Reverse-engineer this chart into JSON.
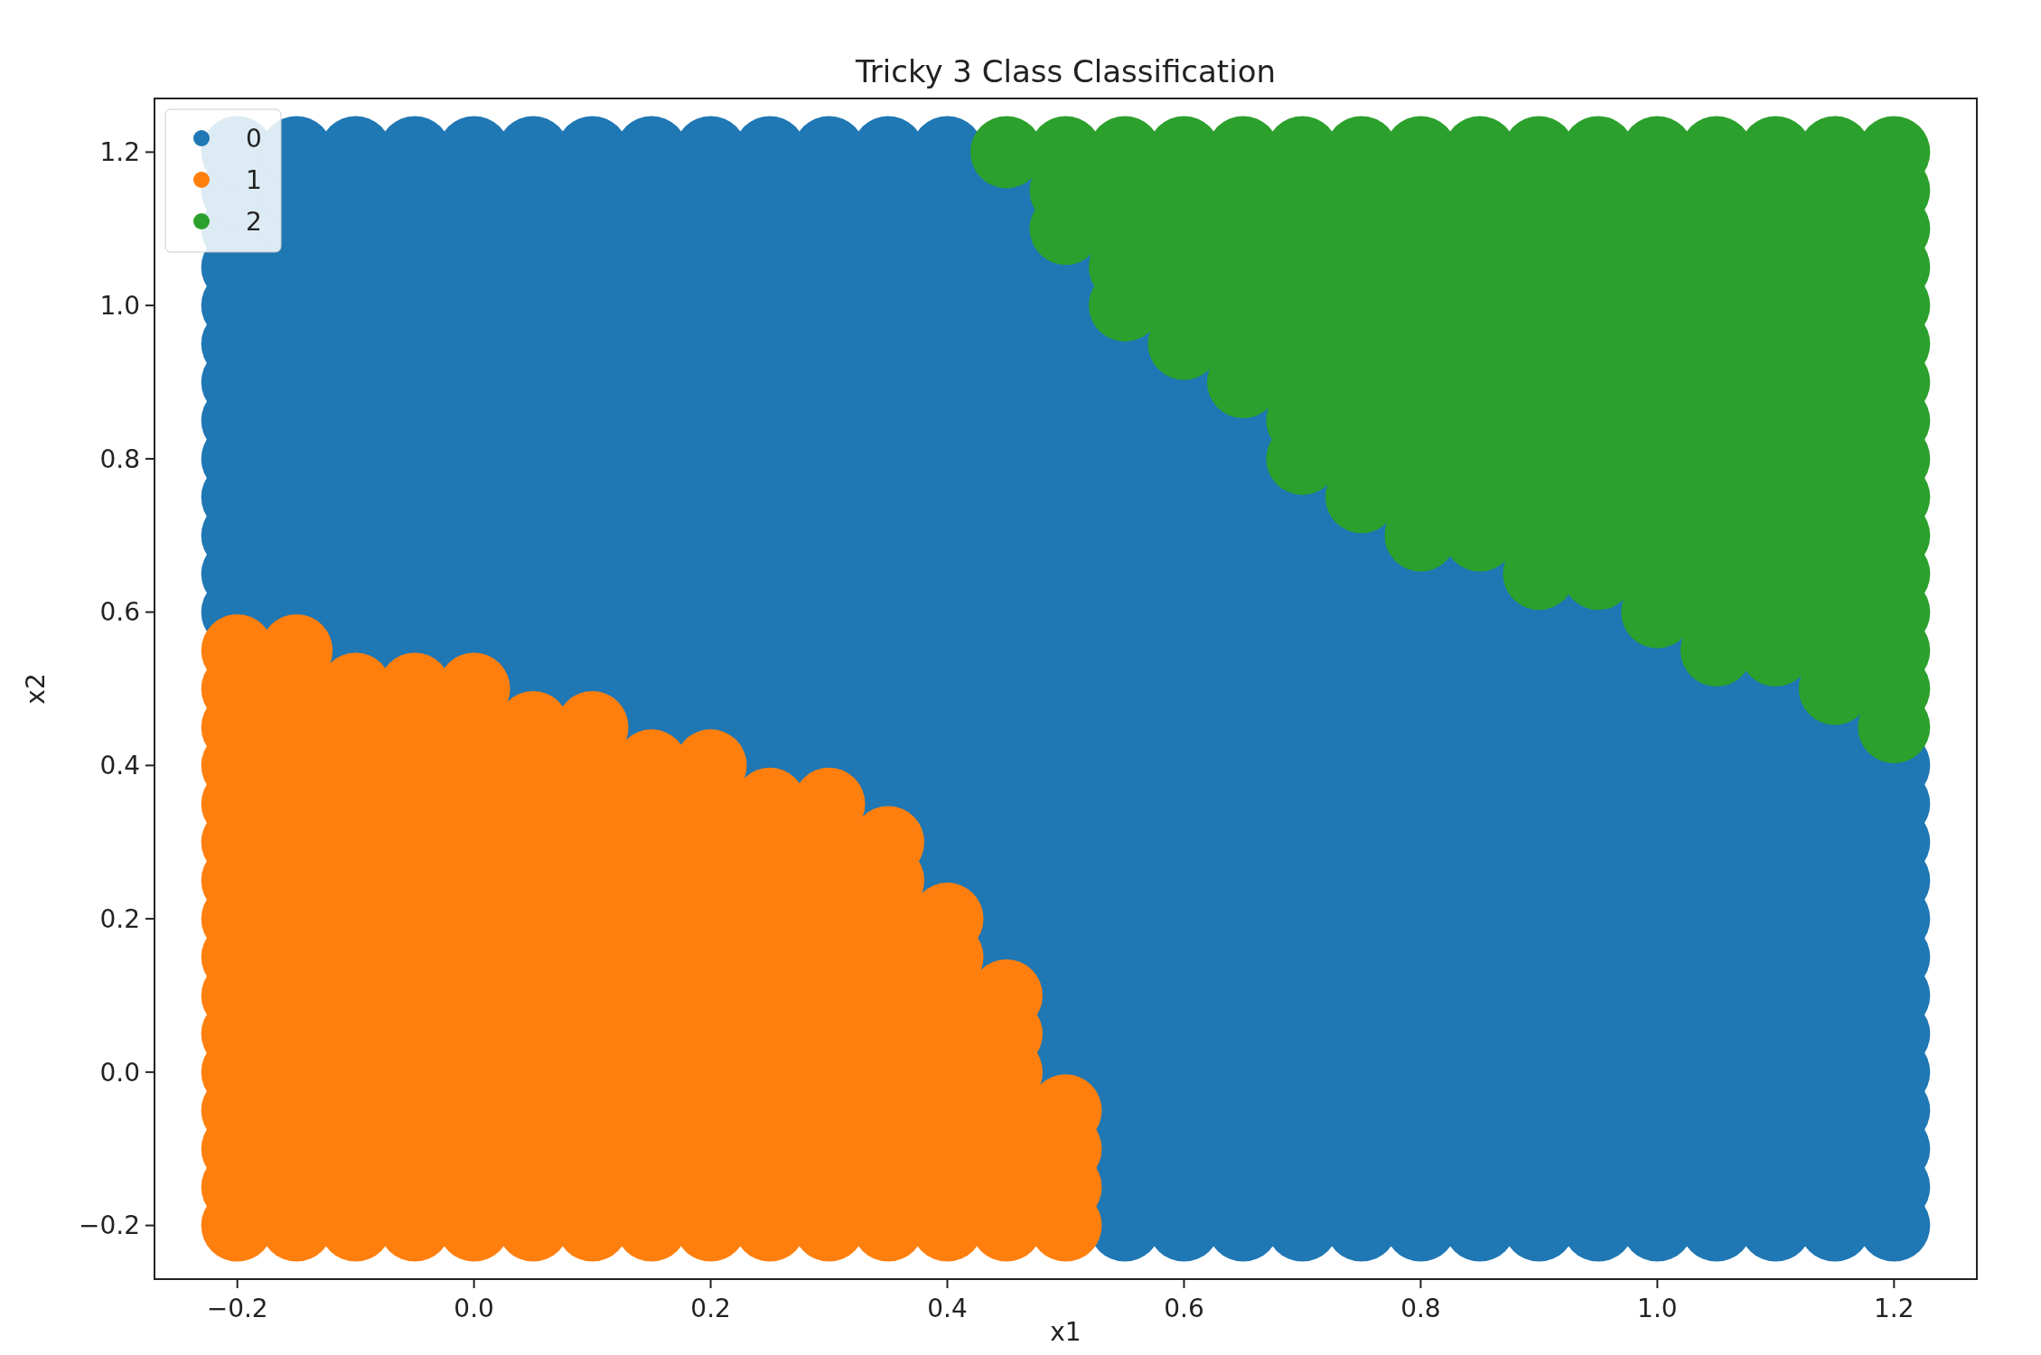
{
  "chart_data": {
    "type": "scatter",
    "title": "Tricky 3 Class Classification",
    "xlabel": "x1",
    "ylabel": "x2",
    "xlim": [
      -0.27,
      1.27
    ],
    "ylim": [
      -0.27,
      1.27
    ],
    "xticks": [
      {
        "value": -0.2,
        "label": "−0.2"
      },
      {
        "value": 0,
        "label": "0.0"
      },
      0.2,
      0.4,
      0.6,
      0.8,
      {
        "value": 1,
        "label": "1.0"
      },
      1.2
    ],
    "yticks": [
      {
        "value": -0.2,
        "label": "−0.2"
      },
      {
        "value": 0,
        "label": "0.0"
      },
      0.2,
      0.4,
      0.6,
      0.8,
      {
        "value": 1,
        "label": "1.0"
      },
      1.2
    ],
    "grid": false,
    "legend": "top left",
    "marker": "circle",
    "series": [
      {
        "name": "0",
        "color": "#1f77b4",
        "x": [
          0.55,
          0.6,
          0.65,
          0.7,
          0.75,
          0.8,
          0.85,
          0.9,
          0.95,
          1,
          1.05,
          1.1,
          1.15,
          1.2,
          0.55,
          0.6,
          0.65,
          0.7,
          0.75,
          0.8,
          0.85,
          0.9,
          0.95,
          1,
          1.05,
          1.1,
          1.15,
          1.2,
          0.55,
          0.6,
          0.65,
          0.7,
          0.75,
          0.8,
          0.85,
          0.9,
          0.95,
          1,
          1.05,
          1.1,
          1.15,
          1.2,
          0.55,
          0.6,
          0.65,
          0.7,
          0.75,
          0.8,
          0.85,
          0.9,
          0.95,
          1,
          1.05,
          1.1,
          1.15,
          1.2,
          0.5,
          0.55,
          0.6,
          0.65,
          0.7,
          0.75,
          0.8,
          0.85,
          0.9,
          0.95,
          1,
          1.05,
          1.1,
          1.15,
          1.2,
          0.5,
          0.55,
          0.6,
          0.65,
          0.7,
          0.75,
          0.8,
          0.85,
          0.9,
          0.95,
          1,
          1.05,
          1.1,
          1.15,
          1.2,
          0.5,
          0.55,
          0.6,
          0.65,
          0.7,
          0.75,
          0.8,
          0.85,
          0.9,
          0.95,
          1,
          1.05,
          1.1,
          1.15,
          1.2,
          0.45,
          0.5,
          0.55,
          0.6,
          0.65,
          0.7,
          0.75,
          0.8,
          0.85,
          0.9,
          0.95,
          1,
          1.05,
          1.1,
          1.15,
          1.2,
          0.45,
          0.5,
          0.55,
          0.6,
          0.65,
          0.7,
          0.75,
          0.8,
          0.85,
          0.9,
          0.95,
          1,
          1.05,
          1.1,
          1.15,
          1.2,
          0.4,
          0.45,
          0.5,
          0.55,
          0.6,
          0.65,
          0.7,
          0.75,
          0.8,
          0.85,
          0.9,
          0.95,
          1,
          1.05,
          1.1,
          1.15,
          1.2,
          0.4,
          0.45,
          0.5,
          0.55,
          0.6,
          0.65,
          0.7,
          0.75,
          0.8,
          0.85,
          0.9,
          0.95,
          1,
          1.05,
          1.1,
          1.15,
          1.2,
          0.35,
          0.4,
          0.45,
          0.5,
          0.55,
          0.6,
          0.65,
          0.7,
          0.75,
          0.8,
          0.85,
          0.9,
          0.95,
          1,
          1.05,
          1.1,
          1.15,
          1.2,
          0.25,
          0.3,
          0.35,
          0.4,
          0.45,
          0.5,
          0.55,
          0.6,
          0.65,
          0.7,
          0.75,
          0.8,
          0.85,
          0.9,
          0.95,
          1,
          1.05,
          1.1,
          1.15,
          1.2,
          0.15,
          0.2,
          0.25,
          0.3,
          0.35,
          0.4,
          0.45,
          0.5,
          0.55,
          0.6,
          0.65,
          0.7,
          0.75,
          0.8,
          0.85,
          0.9,
          0.95,
          1,
          1.05,
          1.1,
          1.15,
          0.05,
          0.1,
          0.15,
          0.2,
          0.25,
          0.3,
          0.35,
          0.4,
          0.45,
          0.5,
          0.55,
          0.6,
          0.65,
          0.7,
          0.75,
          0.8,
          0.85,
          0.9,
          0.95,
          1,
          1.05,
          1.1,
          -0.1,
          -0.05,
          0,
          0.05,
          0.1,
          0.15,
          0.2,
          0.25,
          0.3,
          0.35,
          0.4,
          0.45,
          0.5,
          0.55,
          0.6,
          0.65,
          0.7,
          0.75,
          0.8,
          0.85,
          0.9,
          0.95,
          1,
          -0.2,
          -0.15,
          -0.1,
          -0.05,
          0,
          0.05,
          0.1,
          0.15,
          0.2,
          0.25,
          0.3,
          0.35,
          0.4,
          0.45,
          0.5,
          0.55,
          0.6,
          0.65,
          0.7,
          0.75,
          0.8,
          0.85,
          0.9,
          0.95,
          -0.2,
          -0.15,
          -0.1,
          -0.05,
          0,
          0.05,
          0.1,
          0.15,
          0.2,
          0.25,
          0.3,
          0.35,
          0.4,
          0.45,
          0.5,
          0.55,
          0.6,
          0.65,
          0.7,
          0.75,
          0.8,
          0.85,
          -0.2,
          -0.15,
          -0.1,
          -0.05,
          0,
          0.05,
          0.1,
          0.15,
          0.2,
          0.25,
          0.3,
          0.35,
          0.4,
          0.45,
          0.5,
          0.55,
          0.6,
          0.65,
          0.7,
          0.75,
          -0.2,
          -0.15,
          -0.1,
          -0.05,
          0,
          0.05,
          0.1,
          0.15,
          0.2,
          0.25,
          0.3,
          0.35,
          0.4,
          0.45,
          0.5,
          0.55,
          0.6,
          0.65,
          0.7,
          -0.2,
          -0.15,
          -0.1,
          -0.05,
          0,
          0.05,
          0.1,
          0.15,
          0.2,
          0.25,
          0.3,
          0.35,
          0.4,
          0.45,
          0.5,
          0.55,
          0.6,
          0.65,
          -0.2,
          -0.15,
          -0.1,
          -0.05,
          0,
          0.05,
          0.1,
          0.15,
          0.2,
          0.25,
          0.3,
          0.35,
          0.4,
          0.45,
          0.5,
          0.55,
          0.6,
          0.65,
          -0.2,
          -0.15,
          -0.1,
          -0.05,
          0,
          0.05,
          0.1,
          0.15,
          0.2,
          0.25,
          0.3,
          0.35,
          0.4,
          0.45,
          0.5,
          0.55,
          0.6,
          -0.2,
          -0.15,
          -0.1,
          -0.05,
          0,
          0.05,
          0.1,
          0.15,
          0.2,
          0.25,
          0.3,
          0.35,
          0.4,
          0.45,
          0.5,
          0.55,
          -0.2,
          -0.15,
          -0.1,
          -0.05,
          0,
          0.05,
          0.1,
          0.15,
          0.2,
          0.25,
          0.3,
          0.35,
          0.4,
          0.45,
          0.5,
          -0.2,
          -0.15,
          -0.1,
          -0.05,
          0,
          0.05,
          0.1,
          0.15,
          0.2,
          0.25,
          0.3,
          0.35,
          0.4,
          0.45,
          0.5,
          -0.2,
          -0.15,
          -0.1,
          -0.05,
          0,
          0.05,
          0.1,
          0.15,
          0.2,
          0.25,
          0.3,
          0.35,
          0.4,
          0.45,
          -0.2,
          -0.15,
          -0.1,
          -0.05,
          0,
          0.05,
          0.1,
          0.15,
          0.2,
          0.25,
          0.3,
          0.35,
          0.4,
          0.45,
          -0.2,
          -0.15,
          -0.1,
          -0.05,
          0,
          0.05,
          0.1,
          0.15,
          0.2,
          0.25,
          0.3,
          0.35,
          0.4
        ],
        "values": [
          -0.2,
          -0.2,
          -0.2,
          -0.2,
          -0.2,
          -0.2,
          -0.2,
          -0.2,
          -0.2,
          -0.2,
          -0.2,
          -0.2,
          -0.2,
          -0.2,
          -0.15,
          -0.15,
          -0.15,
          -0.15,
          -0.15,
          -0.15,
          -0.15,
          -0.15,
          -0.15,
          -0.15,
          -0.15,
          -0.15,
          -0.15,
          -0.15,
          -0.1,
          -0.1,
          -0.1,
          -0.1,
          -0.1,
          -0.1,
          -0.1,
          -0.1,
          -0.1,
          -0.1,
          -0.1,
          -0.1,
          -0.1,
          -0.1,
          -0.05,
          -0.05,
          -0.05,
          -0.05,
          -0.05,
          -0.05,
          -0.05,
          -0.05,
          -0.05,
          -0.05,
          -0.05,
          -0.05,
          -0.05,
          -0.05,
          0,
          0,
          0,
          0,
          0,
          0,
          0,
          0,
          0,
          0,
          0,
          0,
          0,
          0,
          0,
          0.05,
          0.05,
          0.05,
          0.05,
          0.05,
          0.05,
          0.05,
          0.05,
          0.05,
          0.05,
          0.05,
          0.05,
          0.05,
          0.05,
          0.05,
          0.1,
          0.1,
          0.1,
          0.1,
          0.1,
          0.1,
          0.1,
          0.1,
          0.1,
          0.1,
          0.1,
          0.1,
          0.1,
          0.1,
          0.1,
          0.15,
          0.15,
          0.15,
          0.15,
          0.15,
          0.15,
          0.15,
          0.15,
          0.15,
          0.15,
          0.15,
          0.15,
          0.15,
          0.15,
          0.15,
          0.15,
          0.2,
          0.2,
          0.2,
          0.2,
          0.2,
          0.2,
          0.2,
          0.2,
          0.2,
          0.2,
          0.2,
          0.2,
          0.2,
          0.2,
          0.2,
          0.2,
          0.25,
          0.25,
          0.25,
          0.25,
          0.25,
          0.25,
          0.25,
          0.25,
          0.25,
          0.25,
          0.25,
          0.25,
          0.25,
          0.25,
          0.25,
          0.25,
          0.25,
          0.3,
          0.3,
          0.3,
          0.3,
          0.3,
          0.3,
          0.3,
          0.3,
          0.3,
          0.3,
          0.3,
          0.3,
          0.3,
          0.3,
          0.3,
          0.3,
          0.3,
          0.35,
          0.35,
          0.35,
          0.35,
          0.35,
          0.35,
          0.35,
          0.35,
          0.35,
          0.35,
          0.35,
          0.35,
          0.35,
          0.35,
          0.35,
          0.35,
          0.35,
          0.35,
          0.4,
          0.4,
          0.4,
          0.4,
          0.4,
          0.4,
          0.4,
          0.4,
          0.4,
          0.4,
          0.4,
          0.4,
          0.4,
          0.4,
          0.4,
          0.4,
          0.4,
          0.4,
          0.4,
          0.4,
          0.45,
          0.45,
          0.45,
          0.45,
          0.45,
          0.45,
          0.45,
          0.45,
          0.45,
          0.45,
          0.45,
          0.45,
          0.45,
          0.45,
          0.45,
          0.45,
          0.45,
          0.45,
          0.45,
          0.45,
          0.45,
          0.5,
          0.5,
          0.5,
          0.5,
          0.5,
          0.5,
          0.5,
          0.5,
          0.5,
          0.5,
          0.5,
          0.5,
          0.5,
          0.5,
          0.5,
          0.5,
          0.5,
          0.5,
          0.5,
          0.5,
          0.5,
          0.5,
          0.55,
          0.55,
          0.55,
          0.55,
          0.55,
          0.55,
          0.55,
          0.55,
          0.55,
          0.55,
          0.55,
          0.55,
          0.55,
          0.55,
          0.55,
          0.55,
          0.55,
          0.55,
          0.55,
          0.55,
          0.55,
          0.55,
          0.55,
          0.6,
          0.6,
          0.6,
          0.6,
          0.6,
          0.6,
          0.6,
          0.6,
          0.6,
          0.6,
          0.6,
          0.6,
          0.6,
          0.6,
          0.6,
          0.6,
          0.6,
          0.6,
          0.6,
          0.6,
          0.6,
          0.6,
          0.6,
          0.6,
          0.65,
          0.65,
          0.65,
          0.65,
          0.65,
          0.65,
          0.65,
          0.65,
          0.65,
          0.65,
          0.65,
          0.65,
          0.65,
          0.65,
          0.65,
          0.65,
          0.65,
          0.65,
          0.65,
          0.65,
          0.65,
          0.65,
          0.7,
          0.7,
          0.7,
          0.7,
          0.7,
          0.7,
          0.7,
          0.7,
          0.7,
          0.7,
          0.7,
          0.7,
          0.7,
          0.7,
          0.7,
          0.7,
          0.7,
          0.7,
          0.7,
          0.7,
          0.75,
          0.75,
          0.75,
          0.75,
          0.75,
          0.75,
          0.75,
          0.75,
          0.75,
          0.75,
          0.75,
          0.75,
          0.75,
          0.75,
          0.75,
          0.75,
          0.75,
          0.75,
          0.75,
          0.8,
          0.8,
          0.8,
          0.8,
          0.8,
          0.8,
          0.8,
          0.8,
          0.8,
          0.8,
          0.8,
          0.8,
          0.8,
          0.8,
          0.8,
          0.8,
          0.8,
          0.8,
          0.85,
          0.85,
          0.85,
          0.85,
          0.85,
          0.85,
          0.85,
          0.85,
          0.85,
          0.85,
          0.85,
          0.85,
          0.85,
          0.85,
          0.85,
          0.85,
          0.85,
          0.85,
          0.9,
          0.9,
          0.9,
          0.9,
          0.9,
          0.9,
          0.9,
          0.9,
          0.9,
          0.9,
          0.9,
          0.9,
          0.9,
          0.9,
          0.9,
          0.9,
          0.9,
          0.95,
          0.95,
          0.95,
          0.95,
          0.95,
          0.95,
          0.95,
          0.95,
          0.95,
          0.95,
          0.95,
          0.95,
          0.95,
          0.95,
          0.95,
          0.95,
          1,
          1,
          1,
          1,
          1,
          1,
          1,
          1,
          1,
          1,
          1,
          1,
          1,
          1,
          1,
          1.05,
          1.05,
          1.05,
          1.05,
          1.05,
          1.05,
          1.05,
          1.05,
          1.05,
          1.05,
          1.05,
          1.05,
          1.05,
          1.05,
          1.05,
          1.1,
          1.1,
          1.1,
          1.1,
          1.1,
          1.1,
          1.1,
          1.1,
          1.1,
          1.1,
          1.1,
          1.1,
          1.1,
          1.1,
          1.15,
          1.15,
          1.15,
          1.15,
          1.15,
          1.15,
          1.15,
          1.15,
          1.15,
          1.15,
          1.15,
          1.15,
          1.15,
          1.15,
          1.2,
          1.2,
          1.2,
          1.2,
          1.2,
          1.2,
          1.2,
          1.2,
          1.2,
          1.2,
          1.2,
          1.2,
          1.2
        ]
      },
      {
        "name": "1",
        "color": "#ff7f0e",
        "x": [
          -0.2,
          -0.15,
          -0.1,
          -0.05,
          0,
          0.05,
          0.1,
          0.15,
          0.2,
          0.25,
          0.3,
          0.35,
          0.4,
          0.45,
          0.5,
          -0.2,
          -0.15,
          -0.1,
          -0.05,
          0,
          0.05,
          0.1,
          0.15,
          0.2,
          0.25,
          0.3,
          0.35,
          0.4,
          0.45,
          0.5,
          -0.2,
          -0.15,
          -0.1,
          -0.05,
          0,
          0.05,
          0.1,
          0.15,
          0.2,
          0.25,
          0.3,
          0.35,
          0.4,
          0.45,
          0.5,
          -0.2,
          -0.15,
          -0.1,
          -0.05,
          0,
          0.05,
          0.1,
          0.15,
          0.2,
          0.25,
          0.3,
          0.35,
          0.4,
          0.45,
          0.5,
          -0.2,
          -0.15,
          -0.1,
          -0.05,
          0,
          0.05,
          0.1,
          0.15,
          0.2,
          0.25,
          0.3,
          0.35,
          0.4,
          0.45,
          -0.2,
          -0.15,
          -0.1,
          -0.05,
          0,
          0.05,
          0.1,
          0.15,
          0.2,
          0.25,
          0.3,
          0.35,
          0.4,
          0.45,
          -0.2,
          -0.15,
          -0.1,
          -0.05,
          0,
          0.05,
          0.1,
          0.15,
          0.2,
          0.25,
          0.3,
          0.35,
          0.4,
          0.45,
          -0.2,
          -0.15,
          -0.1,
          -0.05,
          0,
          0.05,
          0.1,
          0.15,
          0.2,
          0.25,
          0.3,
          0.35,
          0.4,
          -0.2,
          -0.15,
          -0.1,
          -0.05,
          0,
          0.05,
          0.1,
          0.15,
          0.2,
          0.25,
          0.3,
          0.35,
          0.4,
          -0.2,
          -0.15,
          -0.1,
          -0.05,
          0,
          0.05,
          0.1,
          0.15,
          0.2,
          0.25,
          0.3,
          0.35,
          -0.2,
          -0.15,
          -0.1,
          -0.05,
          0,
          0.05,
          0.1,
          0.15,
          0.2,
          0.25,
          0.3,
          0.35,
          -0.2,
          -0.15,
          -0.1,
          -0.05,
          0,
          0.05,
          0.1,
          0.15,
          0.2,
          0.25,
          0.3,
          -0.2,
          -0.15,
          -0.1,
          -0.05,
          0,
          0.05,
          0.1,
          0.15,
          0.2,
          -0.2,
          -0.15,
          -0.1,
          -0.05,
          0,
          0.05,
          0.1,
          -0.2,
          -0.15,
          -0.1,
          -0.05,
          0,
          -0.2,
          -0.15
        ],
        "values": [
          -0.2,
          -0.2,
          -0.2,
          -0.2,
          -0.2,
          -0.2,
          -0.2,
          -0.2,
          -0.2,
          -0.2,
          -0.2,
          -0.2,
          -0.2,
          -0.2,
          -0.2,
          -0.15,
          -0.15,
          -0.15,
          -0.15,
          -0.15,
          -0.15,
          -0.15,
          -0.15,
          -0.15,
          -0.15,
          -0.15,
          -0.15,
          -0.15,
          -0.15,
          -0.15,
          -0.1,
          -0.1,
          -0.1,
          -0.1,
          -0.1,
          -0.1,
          -0.1,
          -0.1,
          -0.1,
          -0.1,
          -0.1,
          -0.1,
          -0.1,
          -0.1,
          -0.1,
          -0.05,
          -0.05,
          -0.05,
          -0.05,
          -0.05,
          -0.05,
          -0.05,
          -0.05,
          -0.05,
          -0.05,
          -0.05,
          -0.05,
          -0.05,
          -0.05,
          -0.05,
          0,
          0,
          0,
          0,
          0,
          0,
          0,
          0,
          0,
          0,
          0,
          0,
          0,
          0,
          0.05,
          0.05,
          0.05,
          0.05,
          0.05,
          0.05,
          0.05,
          0.05,
          0.05,
          0.05,
          0.05,
          0.05,
          0.05,
          0.05,
          0.1,
          0.1,
          0.1,
          0.1,
          0.1,
          0.1,
          0.1,
          0.1,
          0.1,
          0.1,
          0.1,
          0.1,
          0.1,
          0.1,
          0.15,
          0.15,
          0.15,
          0.15,
          0.15,
          0.15,
          0.15,
          0.15,
          0.15,
          0.15,
          0.15,
          0.15,
          0.15,
          0.2,
          0.2,
          0.2,
          0.2,
          0.2,
          0.2,
          0.2,
          0.2,
          0.2,
          0.2,
          0.2,
          0.2,
          0.2,
          0.25,
          0.25,
          0.25,
          0.25,
          0.25,
          0.25,
          0.25,
          0.25,
          0.25,
          0.25,
          0.25,
          0.25,
          0.3,
          0.3,
          0.3,
          0.3,
          0.3,
          0.3,
          0.3,
          0.3,
          0.3,
          0.3,
          0.3,
          0.3,
          0.35,
          0.35,
          0.35,
          0.35,
          0.35,
          0.35,
          0.35,
          0.35,
          0.35,
          0.35,
          0.35,
          0.4,
          0.4,
          0.4,
          0.4,
          0.4,
          0.4,
          0.4,
          0.4,
          0.4,
          0.45,
          0.45,
          0.45,
          0.45,
          0.45,
          0.45,
          0.45,
          0.5,
          0.5,
          0.5,
          0.5,
          0.5,
          0.55,
          0.55
        ]
      },
      {
        "name": "2",
        "color": "#2ca02c",
        "x": [
          1.2,
          1.15,
          1.2,
          1.05,
          1.1,
          1.15,
          1.2,
          1,
          1.05,
          1.1,
          1.15,
          1.2,
          0.9,
          0.95,
          1,
          1.05,
          1.1,
          1.15,
          1.2,
          0.8,
          0.85,
          0.9,
          0.95,
          1,
          1.05,
          1.1,
          1.15,
          1.2,
          0.75,
          0.8,
          0.85,
          0.9,
          0.95,
          1,
          1.05,
          1.1,
          1.15,
          1.2,
          0.7,
          0.75,
          0.8,
          0.85,
          0.9,
          0.95,
          1,
          1.05,
          1.1,
          1.15,
          1.2,
          0.7,
          0.75,
          0.8,
          0.85,
          0.9,
          0.95,
          1,
          1.05,
          1.1,
          1.15,
          1.2,
          0.65,
          0.7,
          0.75,
          0.8,
          0.85,
          0.9,
          0.95,
          1,
          1.05,
          1.1,
          1.15,
          1.2,
          0.6,
          0.65,
          0.7,
          0.75,
          0.8,
          0.85,
          0.9,
          0.95,
          1,
          1.05,
          1.1,
          1.15,
          1.2,
          0.55,
          0.6,
          0.65,
          0.7,
          0.75,
          0.8,
          0.85,
          0.9,
          0.95,
          1,
          1.05,
          1.1,
          1.15,
          1.2,
          0.55,
          0.6,
          0.65,
          0.7,
          0.75,
          0.8,
          0.85,
          0.9,
          0.95,
          1,
          1.05,
          1.1,
          1.15,
          1.2,
          0.5,
          0.55,
          0.6,
          0.65,
          0.7,
          0.75,
          0.8,
          0.85,
          0.9,
          0.95,
          1,
          1.05,
          1.1,
          1.15,
          1.2,
          0.5,
          0.55,
          0.6,
          0.65,
          0.7,
          0.75,
          0.8,
          0.85,
          0.9,
          0.95,
          1,
          1.05,
          1.1,
          1.15,
          1.2,
          0.45,
          0.5,
          0.55,
          0.6,
          0.65,
          0.7,
          0.75,
          0.8,
          0.85,
          0.9,
          0.95,
          1,
          1.05,
          1.1,
          1.15,
          1.2
        ],
        "values": [
          0.45,
          0.5,
          0.5,
          0.55,
          0.55,
          0.55,
          0.55,
          0.6,
          0.6,
          0.6,
          0.6,
          0.6,
          0.65,
          0.65,
          0.65,
          0.65,
          0.65,
          0.65,
          0.65,
          0.7,
          0.7,
          0.7,
          0.7,
          0.7,
          0.7,
          0.7,
          0.7,
          0.7,
          0.75,
          0.75,
          0.75,
          0.75,
          0.75,
          0.75,
          0.75,
          0.75,
          0.75,
          0.75,
          0.8,
          0.8,
          0.8,
          0.8,
          0.8,
          0.8,
          0.8,
          0.8,
          0.8,
          0.8,
          0.8,
          0.85,
          0.85,
          0.85,
          0.85,
          0.85,
          0.85,
          0.85,
          0.85,
          0.85,
          0.85,
          0.85,
          0.9,
          0.9,
          0.9,
          0.9,
          0.9,
          0.9,
          0.9,
          0.9,
          0.9,
          0.9,
          0.9,
          0.9,
          0.95,
          0.95,
          0.95,
          0.95,
          0.95,
          0.95,
          0.95,
          0.95,
          0.95,
          0.95,
          0.95,
          0.95,
          0.95,
          1,
          1,
          1,
          1,
          1,
          1,
          1,
          1,
          1,
          1,
          1,
          1,
          1,
          1,
          1.05,
          1.05,
          1.05,
          1.05,
          1.05,
          1.05,
          1.05,
          1.05,
          1.05,
          1.05,
          1.05,
          1.05,
          1.05,
          1.05,
          1.1,
          1.1,
          1.1,
          1.1,
          1.1,
          1.1,
          1.1,
          1.1,
          1.1,
          1.1,
          1.1,
          1.1,
          1.1,
          1.1,
          1.1,
          1.15,
          1.15,
          1.15,
          1.15,
          1.15,
          1.15,
          1.15,
          1.15,
          1.15,
          1.15,
          1.15,
          1.15,
          1.15,
          1.15,
          1.15,
          1.2,
          1.2,
          1.2,
          1.2,
          1.2,
          1.2,
          1.2,
          1.2,
          1.2,
          1.2,
          1.2,
          1.2,
          1.2,
          1.2,
          1.2,
          1.2
        ]
      }
    ]
  }
}
